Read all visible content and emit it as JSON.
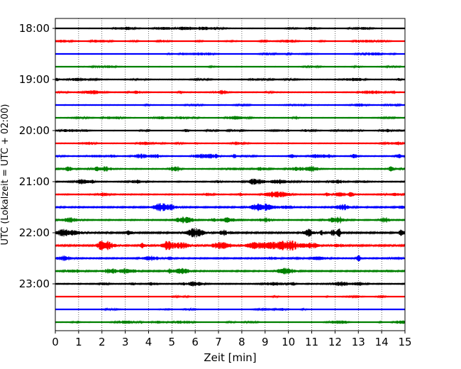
{
  "chart_data": {
    "type": "line",
    "title": "",
    "xlabel": "Zeit  [min]",
    "ylabel": "UTC (Lokalzeit = UTC + 02:00)",
    "xlim": [
      0,
      15
    ],
    "x_ticks": [
      0,
      1,
      2,
      3,
      4,
      5,
      6,
      7,
      8,
      9,
      10,
      11,
      12,
      13,
      14,
      15
    ],
    "y_tick_labels": [
      "18:00",
      "19:00",
      "20:00",
      "21:00",
      "22:00",
      "23:00"
    ],
    "grid": "vertical dotted",
    "trace_interval_min": 15,
    "color_cycle": [
      "#000000",
      "#ff0000",
      "#0000ff",
      "#008000"
    ],
    "series": [
      {
        "start": "18:00",
        "color": "#000000",
        "amplitude": 0.25
      },
      {
        "start": "18:15",
        "color": "#ff0000",
        "amplitude": 0.22
      },
      {
        "start": "18:30",
        "color": "#0000ff",
        "amplitude": 0.22
      },
      {
        "start": "18:45",
        "color": "#008000",
        "amplitude": 0.25
      },
      {
        "start": "19:00",
        "color": "#000000",
        "amplitude": 0.3
      },
      {
        "start": "19:15",
        "color": "#ff0000",
        "amplitude": 0.35
      },
      {
        "start": "19:30",
        "color": "#0000ff",
        "amplitude": 0.28
      },
      {
        "start": "19:45",
        "color": "#008000",
        "amplitude": 0.28
      },
      {
        "start": "20:00",
        "color": "#000000",
        "amplitude": 0.25
      },
      {
        "start": "20:15",
        "color": "#ff0000",
        "amplitude": 0.3
      },
      {
        "start": "20:30",
        "color": "#0000ff",
        "amplitude": 0.35
      },
      {
        "start": "20:45",
        "color": "#008000",
        "amplitude": 0.4
      },
      {
        "start": "21:00",
        "color": "#000000",
        "amplitude": 0.45
      },
      {
        "start": "21:15",
        "color": "#ff0000",
        "amplitude": 0.45
      },
      {
        "start": "21:30",
        "color": "#0000ff",
        "amplitude": 0.6
      },
      {
        "start": "21:45",
        "color": "#008000",
        "amplitude": 0.5
      },
      {
        "start": "22:00",
        "color": "#000000",
        "amplitude": 0.7
      },
      {
        "start": "22:15",
        "color": "#ff0000",
        "amplitude": 0.75
      },
      {
        "start": "22:30",
        "color": "#0000ff",
        "amplitude": 0.55
      },
      {
        "start": "22:45",
        "color": "#008000",
        "amplitude": 0.55
      },
      {
        "start": "23:00",
        "color": "#000000",
        "amplitude": 0.45
      },
      {
        "start": "23:15",
        "color": "#ff0000",
        "amplitude": 0.15
      },
      {
        "start": "23:30",
        "color": "#0000ff",
        "amplitude": 0.2
      },
      {
        "start": "23:45",
        "color": "#008000",
        "amplitude": 0.25
      }
    ]
  }
}
